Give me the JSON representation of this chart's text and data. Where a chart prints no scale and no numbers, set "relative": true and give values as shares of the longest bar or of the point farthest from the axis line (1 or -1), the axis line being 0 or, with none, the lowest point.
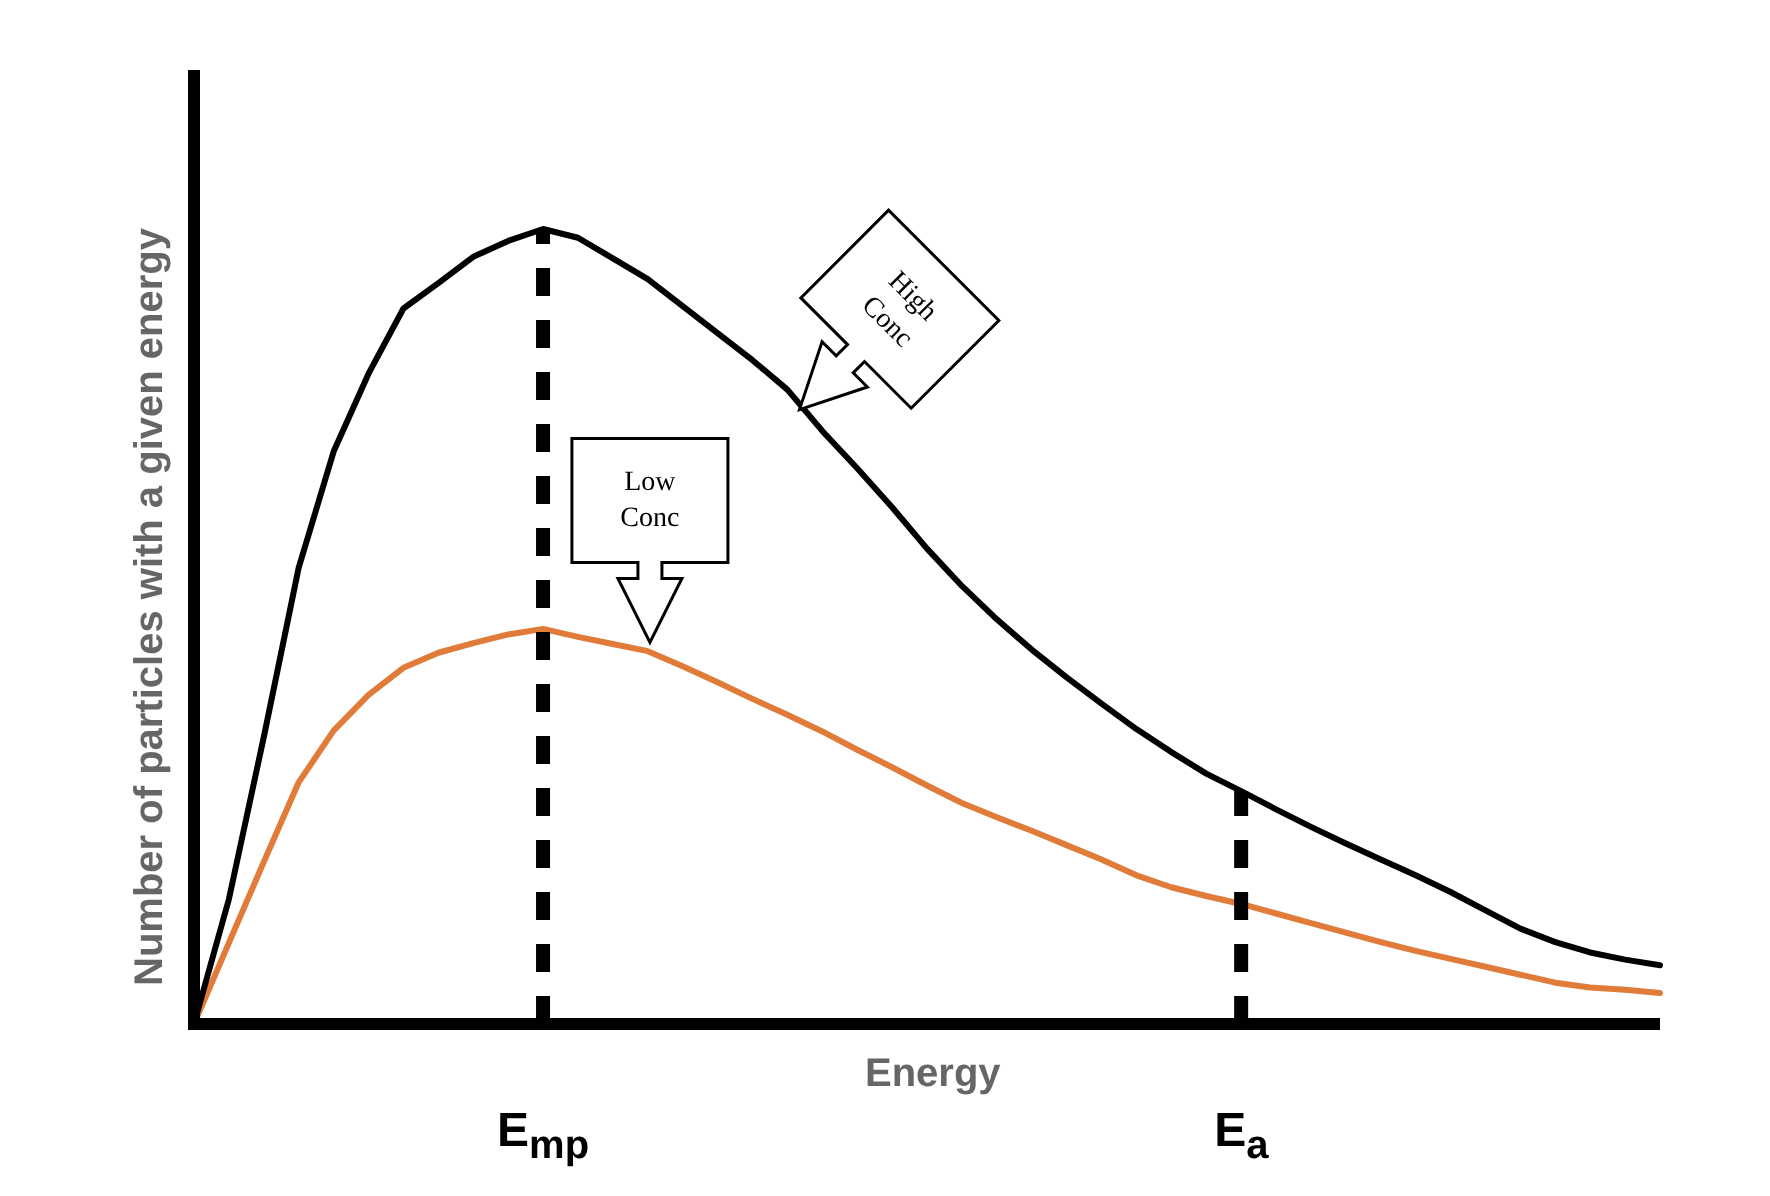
{
  "chart_data": {
    "type": "line",
    "relative": true,
    "xlabel": "Energy",
    "ylabel": "Number of particles with a given energy",
    "legend": false,
    "marker": "none",
    "line_style": "solid",
    "categories": [
      null,
      null,
      null,
      null,
      null,
      null,
      null,
      null,
      null,
      null,
      "E$_{mp}$",
      null,
      null,
      null,
      null,
      null,
      null,
      null,
      null,
      null,
      null,
      null,
      null,
      null,
      null,
      null,
      null,
      null,
      null,
      null,
      "E$_{a}$",
      null,
      null,
      null,
      null,
      null,
      null,
      null,
      null,
      null,
      null,
      null,
      null
    ],
    "series": [
      {
        "color": "#000000",
        "values": [
          0,
          0.157,
          0.361,
          0.574,
          0.72,
          0.818,
          0.9,
          0.932,
          0.965,
          0.985,
          1,
          0.989,
          0.963,
          0.937,
          0.903,
          0.869,
          0.835,
          0.798,
          0.746,
          0.699,
          0.65,
          0.598,
          0.551,
          0.509,
          0.471,
          0.436,
          0.403,
          0.371,
          0.342,
          0.315,
          0.293,
          0.27,
          0.248,
          0.227,
          0.207,
          0.187,
          0.166,
          0.143,
          0.12,
          0.103,
          0.09,
          0.081,
          0.074
        ]
      },
      {
        "color": "#e07b39",
        "values": [
          0,
          0.102,
          0.204,
          0.304,
          0.369,
          0.414,
          0.448,
          0.467,
          0.479,
          0.49,
          0.497,
          0.487,
          0.478,
          0.469,
          0.45,
          0.43,
          0.409,
          0.389,
          0.368,
          0.345,
          0.323,
          0.3,
          0.278,
          0.26,
          0.243,
          0.225,
          0.207,
          0.187,
          0.172,
          0.161,
          0.151,
          0.139,
          0.127,
          0.115,
          0.103,
          0.092,
          0.082,
          0.072,
          0.062,
          0.052,
          0.046,
          0.043,
          0.039
        ]
      }
    ],
    "ref_lines": [
      {
        "axis": "x",
        "value": "E$_{mp}$",
        "color": "#000000",
        "line_style": "dashed"
      },
      {
        "axis": "x",
        "value": "E$_{a}$",
        "color": "#000000",
        "line_style": "dashed"
      }
    ],
    "annotations": [
      "High Conc",
      "Low Conc"
    ]
  }
}
